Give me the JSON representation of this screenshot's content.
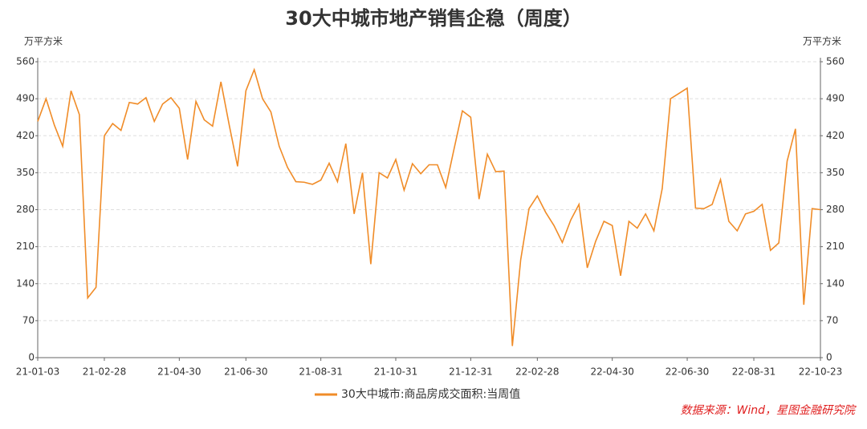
{
  "chart_data": {
    "type": "line",
    "title": "30大中城市地产销售企稳（周度）",
    "y_label": "万平方米",
    "source": "数据来源：Wind，星图金融研究院",
    "categories": [
      "21-01-03",
      null,
      null,
      null,
      null,
      null,
      null,
      null,
      "21-02-28",
      null,
      null,
      null,
      null,
      null,
      null,
      null,
      null,
      "21-04-30",
      null,
      null,
      null,
      null,
      null,
      null,
      null,
      "21-06-30",
      null,
      null,
      null,
      null,
      null,
      null,
      null,
      null,
      "21-08-31",
      null,
      null,
      null,
      null,
      null,
      null,
      null,
      null,
      "21-10-31",
      null,
      null,
      null,
      null,
      null,
      null,
      null,
      null,
      "21-12-31",
      null,
      null,
      null,
      null,
      null,
      null,
      null,
      "22-02-28",
      null,
      null,
      null,
      null,
      null,
      null,
      null,
      null,
      "22-04-30",
      null,
      null,
      null,
      null,
      null,
      null,
      null,
      null,
      "22-06-30",
      null,
      null,
      null,
      null,
      null,
      null,
      null,
      "22-08-31",
      null,
      null,
      null,
      null,
      null,
      null,
      null,
      "22-10-23"
    ],
    "series": [
      {
        "name": "30大中城市:商品房成交面积:当周值",
        "color": "#f08c28",
        "values": [
          447,
          490,
          440,
          400,
          505,
          460,
          113,
          133,
          420,
          443,
          430,
          483,
          480,
          492,
          447,
          480,
          492,
          472,
          375,
          485,
          450,
          438,
          522,
          440,
          362,
          505,
          545,
          490,
          465,
          400,
          360,
          333,
          332,
          328,
          336,
          368,
          333,
          405,
          272,
          350,
          177,
          350,
          340,
          375,
          317,
          367,
          348,
          365,
          365,
          322,
          395,
          467,
          455,
          300,
          385,
          352,
          353,
          22,
          185,
          282,
          306,
          275,
          250,
          218,
          260,
          290,
          170,
          220,
          258,
          250,
          155,
          258,
          245,
          272,
          240,
          320,
          490,
          500,
          510,
          283,
          282,
          290,
          337,
          258,
          240,
          272,
          277,
          290,
          203,
          217,
          372,
          433,
          100,
          282,
          280
        ]
      }
    ],
    "ylim": [
      0,
      560
    ],
    "yticks": [
      0,
      70,
      140,
      210,
      280,
      350,
      420,
      490,
      560
    ],
    "grid": true,
    "legend": "bottom"
  }
}
